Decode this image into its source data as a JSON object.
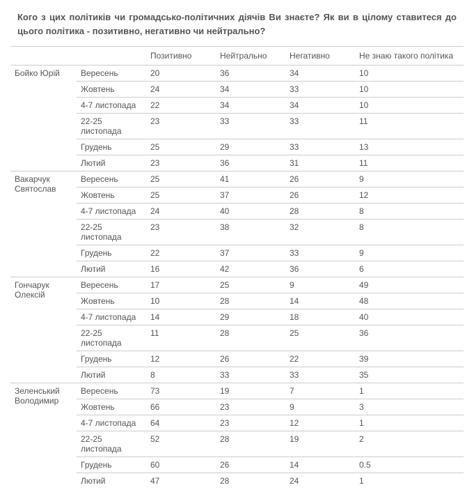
{
  "title": "Кого з цих політиків чи громадсько-політичних діячів Ви знаєте? Як ви в цілому ставитеся до цього політика - позитивно, негативно чи нейтрально?",
  "columns": [
    "",
    "",
    "Позитивно",
    "Нейтрально",
    "Негативно",
    "Не знаю такого політика"
  ],
  "periods": [
    "Вересень",
    "Жовтень",
    "4-7 листопада",
    "22-25 листопада",
    "Грудень",
    "Лютий"
  ],
  "politicians": [
    {
      "name": "Бойко Юрій",
      "rows": [
        [
          20,
          36,
          34,
          10
        ],
        [
          24,
          34,
          33,
          10
        ],
        [
          22,
          34,
          34,
          10
        ],
        [
          23,
          33,
          33,
          11
        ],
        [
          25,
          29,
          33,
          13
        ],
        [
          23,
          36,
          31,
          11
        ]
      ]
    },
    {
      "name": "Вакарчук Святослав",
      "rows": [
        [
          25,
          41,
          26,
          9
        ],
        [
          25,
          37,
          26,
          12
        ],
        [
          24,
          40,
          28,
          8
        ],
        [
          23,
          38,
          32,
          8
        ],
        [
          22,
          37,
          33,
          9
        ],
        [
          16,
          42,
          36,
          6
        ]
      ]
    },
    {
      "name": "Гончарук Олексій",
      "rows": [
        [
          17,
          25,
          9,
          49
        ],
        [
          10,
          28,
          14,
          48
        ],
        [
          14,
          29,
          18,
          40
        ],
        [
          11,
          28,
          25,
          36
        ],
        [
          12,
          26,
          22,
          39
        ],
        [
          8,
          33,
          33,
          35
        ]
      ]
    },
    {
      "name": "Зеленський Володимир",
      "rows": [
        [
          73,
          19,
          7,
          1
        ],
        [
          66,
          23,
          9,
          3
        ],
        [
          64,
          23,
          12,
          1
        ],
        [
          52,
          28,
          19,
          2
        ],
        [
          60,
          26,
          14,
          0.5
        ],
        [
          47,
          28,
          24,
          1
        ]
      ]
    }
  ]
}
